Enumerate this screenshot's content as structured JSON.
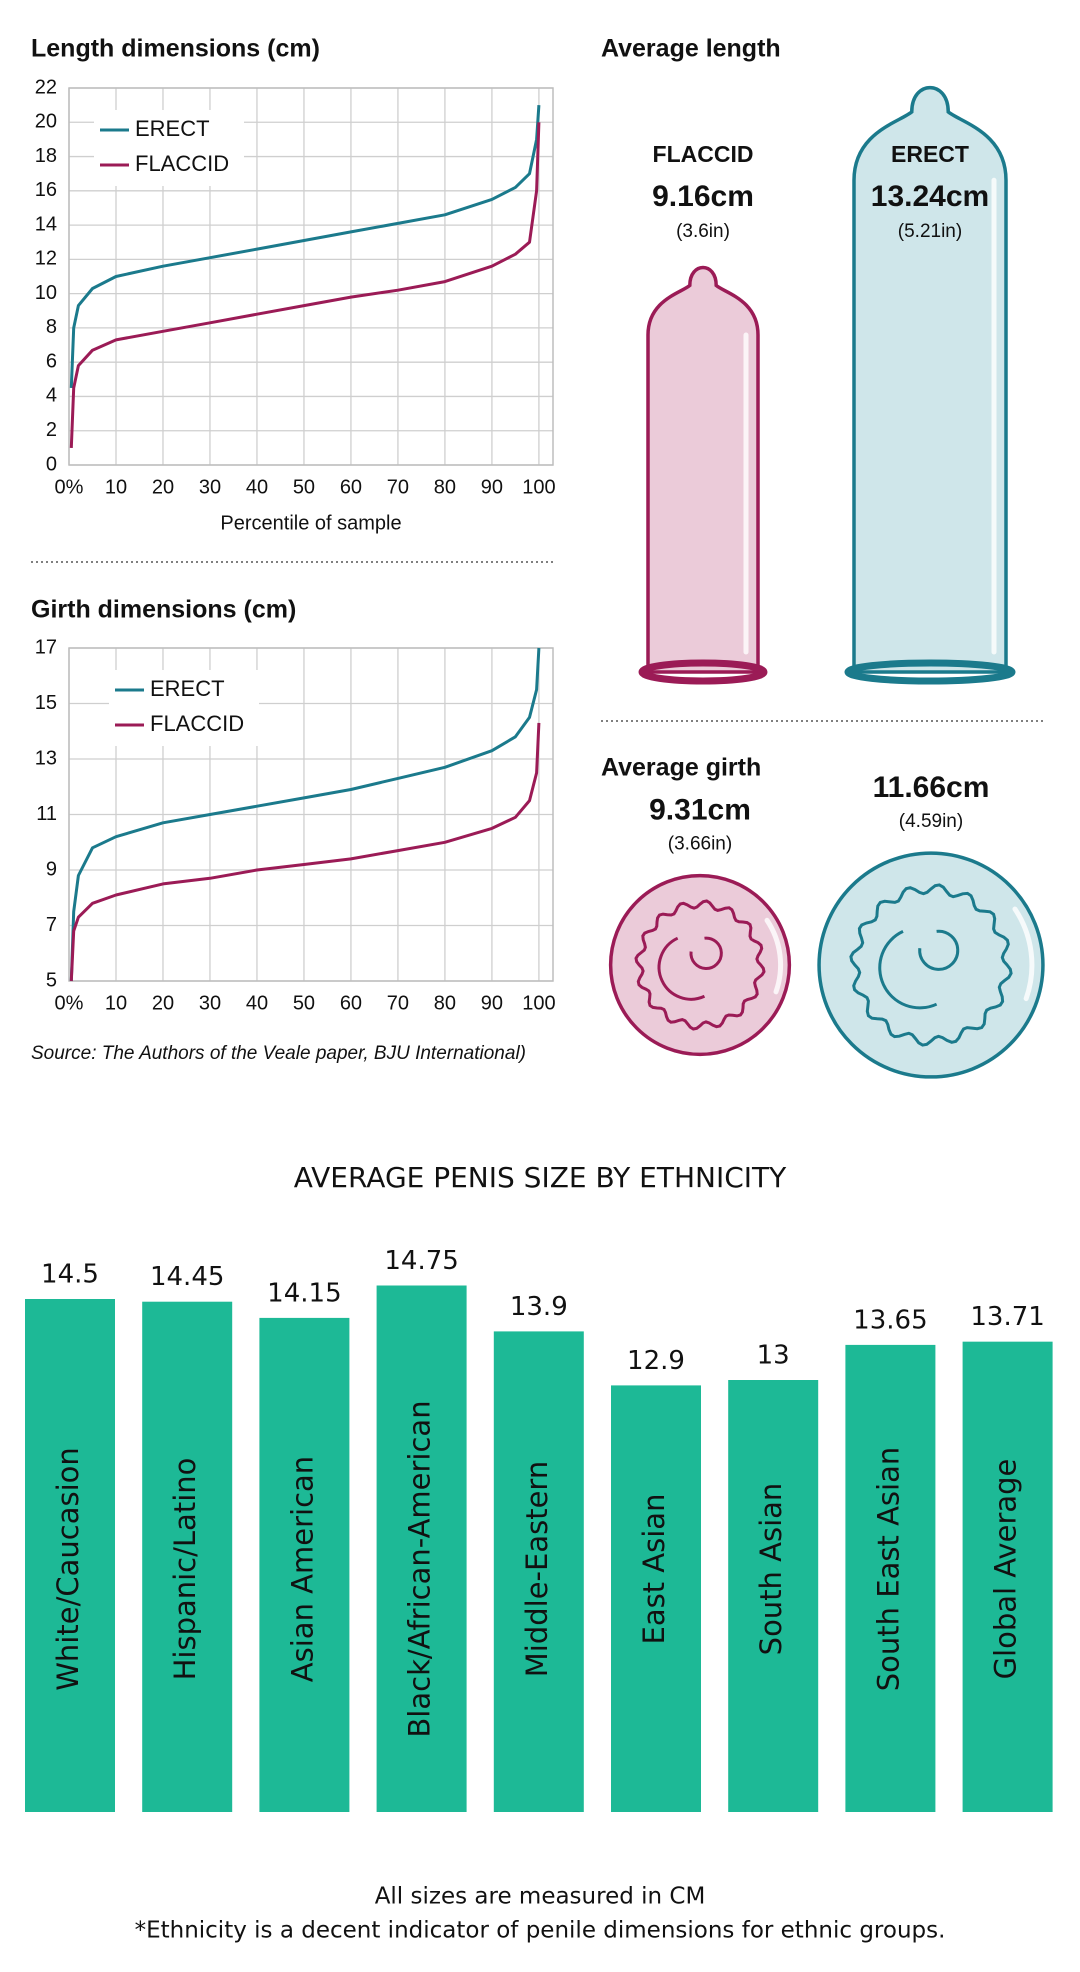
{
  "chart_data": [
    {
      "type": "line",
      "title": "Length dimensions (cm)",
      "xlabel": "Percentile of sample",
      "x": [
        0.5,
        1,
        2,
        5,
        10,
        20,
        30,
        40,
        50,
        60,
        70,
        80,
        90,
        95,
        98,
        99.5,
        100
      ],
      "series": [
        {
          "name": "ERECT",
          "color": "#1b7a8c",
          "values": [
            4.5,
            8,
            9.3,
            10.3,
            11,
            11.6,
            12.1,
            12.6,
            13.1,
            13.6,
            14.1,
            14.6,
            15.5,
            16.2,
            17,
            19,
            21
          ]
        },
        {
          "name": "FLACCID",
          "color": "#9b1b56",
          "values": [
            1,
            4.5,
            5.8,
            6.7,
            7.3,
            7.8,
            8.3,
            8.8,
            9.3,
            9.8,
            10.2,
            10.7,
            11.6,
            12.3,
            13,
            16,
            20
          ]
        }
      ],
      "xlim": [
        0,
        103
      ],
      "ylim": [
        0,
        22
      ],
      "xticks": [
        {
          "value": 0,
          "label": "0%"
        },
        10,
        20,
        30,
        40,
        50,
        60,
        70,
        80,
        90,
        100
      ],
      "yticks": [
        0,
        2,
        4,
        6,
        8,
        10,
        12,
        14,
        16,
        18,
        20,
        22
      ],
      "grid": true,
      "legend": "upper left"
    },
    {
      "type": "line",
      "title": "Girth dimensions (cm)",
      "x": [
        0.5,
        1,
        2,
        5,
        10,
        20,
        30,
        40,
        50,
        60,
        70,
        80,
        90,
        95,
        98,
        99.5,
        100
      ],
      "series": [
        {
          "name": "ERECT",
          "color": "#1b7a8c",
          "values": [
            5,
            7.5,
            8.8,
            9.8,
            10.2,
            10.7,
            11,
            11.3,
            11.6,
            11.9,
            12.3,
            12.7,
            13.3,
            13.8,
            14.5,
            15.5,
            17
          ]
        },
        {
          "name": "FLACCID",
          "color": "#9b1b56",
          "values": [
            5,
            6.8,
            7.3,
            7.8,
            8.1,
            8.5,
            8.7,
            9,
            9.2,
            9.4,
            9.7,
            10,
            10.5,
            10.9,
            11.5,
            12.5,
            14.3
          ]
        }
      ],
      "xlim": [
        0,
        103
      ],
      "ylim": [
        5,
        17
      ],
      "xticks": [
        {
          "value": 0,
          "label": "0%"
        },
        10,
        20,
        30,
        40,
        50,
        60,
        70,
        80,
        90,
        100
      ],
      "yticks": [
        5,
        7,
        9,
        11,
        13,
        15,
        17
      ],
      "grid": true,
      "legend": "upper left",
      "source": "Source: The Authors of the Veale paper, BJU International)"
    },
    {
      "type": "pictogram",
      "title": "Average length",
      "categories": [
        "FLACCID",
        "ERECT"
      ],
      "values": [
        9.16,
        13.24
      ],
      "value_labels": [
        "9.16cm",
        "13.24cm"
      ],
      "inch_labels": [
        "(3.6in)",
        "(5.21in)"
      ],
      "colors": [
        "#9b1b56",
        "#1b7a8c"
      ],
      "fills": [
        "#ebcbd9",
        "#cfe6ea"
      ]
    },
    {
      "type": "bubble",
      "title": "Average girth",
      "values": [
        9.31,
        11.66
      ],
      "value_labels": [
        "9.31cm",
        "11.66cm"
      ],
      "inch_labels": [
        "(3.66in)",
        "(4.59in)"
      ],
      "colors": [
        "#9b1b56",
        "#1b7a8c"
      ],
      "fills": [
        "#ebcbd9",
        "#cfe6ea"
      ]
    },
    {
      "type": "bar",
      "title": "AVERAGE PENIS SIZE BY ETHNICITY",
      "categories": [
        "White/Caucasion",
        "Hispanic/Latino",
        "Asian American",
        "Black/African-American",
        "Middle-Eastern",
        "East Asian",
        "South Asian",
        "South East Asian",
        "Global Average"
      ],
      "values": [
        14.5,
        14.45,
        14.15,
        14.75,
        13.9,
        12.9,
        13,
        13.65,
        13.71
      ],
      "color": "#1db996",
      "ylim": [
        5,
        15
      ],
      "notes": [
        "All sizes are measured in CM",
        "*Ethnicity is a decent indicator of penile dimensions for ethnic groups."
      ]
    }
  ]
}
